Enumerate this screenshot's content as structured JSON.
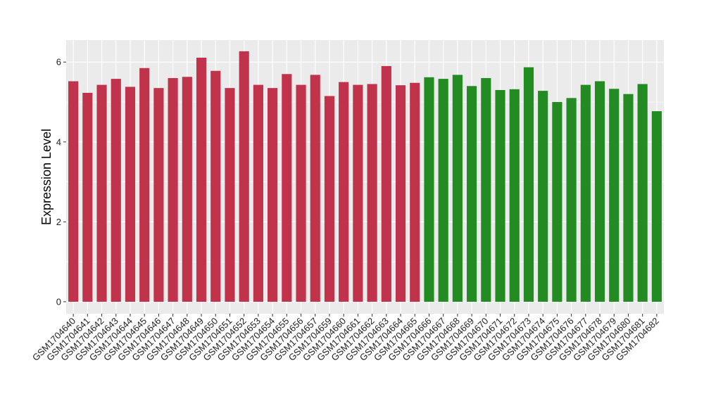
{
  "chart_data": {
    "type": "bar",
    "title": "",
    "xlabel": "",
    "ylabel": "Expression Level",
    "ylim": [
      -0.3,
      6.55
    ],
    "yticks": [
      0,
      2,
      4,
      6
    ],
    "ytick_labels": [
      "0",
      "2",
      "4",
      "6"
    ],
    "grid": true,
    "legend": "none",
    "categories": [
      "GSM1704640",
      "GSM1704641",
      "GSM1704642",
      "GSM1704643",
      "GSM1704644",
      "GSM1704645",
      "GSM1704646",
      "GSM1704647",
      "GSM1704648",
      "GSM1704649",
      "GSM1704650",
      "GSM1704651",
      "GSM1704652",
      "GSM1704653",
      "GSM1704654",
      "GSM1704655",
      "GSM1704656",
      "GSM1704657",
      "GSM1704659",
      "GSM1704660",
      "GSM1704661",
      "GSM1704662",
      "GSM1704663",
      "GSM1704664",
      "GSM1704665",
      "GSM1704666",
      "GSM1704667",
      "GSM1704668",
      "GSM1704669",
      "GSM1704670",
      "GSM1704671",
      "GSM1704672",
      "GSM1704673",
      "GSM1704674",
      "GSM1704675",
      "GSM1704676",
      "GSM1704677",
      "GSM1704678",
      "GSM1704679",
      "GSM1704680",
      "GSM1704681",
      "GSM1704682"
    ],
    "values": [
      5.52,
      5.23,
      5.43,
      5.58,
      5.38,
      5.85,
      5.35,
      5.6,
      5.63,
      6.11,
      5.78,
      5.35,
      6.27,
      5.43,
      5.35,
      5.7,
      5.43,
      5.68,
      5.15,
      5.5,
      5.43,
      5.45,
      5.9,
      5.42,
      5.48,
      5.62,
      5.58,
      5.68,
      5.4,
      5.6,
      5.3,
      5.32,
      5.87,
      5.28,
      5.0,
      5.1,
      5.43,
      5.52,
      5.33,
      5.2,
      5.45,
      4.77
    ],
    "colors": [
      "#c0334b",
      "#c0334b",
      "#c0334b",
      "#c0334b",
      "#c0334b",
      "#c0334b",
      "#c0334b",
      "#c0334b",
      "#c0334b",
      "#c0334b",
      "#c0334b",
      "#c0334b",
      "#c0334b",
      "#c0334b",
      "#c0334b",
      "#c0334b",
      "#c0334b",
      "#c0334b",
      "#c0334b",
      "#c0334b",
      "#c0334b",
      "#c0334b",
      "#c0334b",
      "#c0334b",
      "#c0334b",
      "#228b22",
      "#228b22",
      "#228b22",
      "#228b22",
      "#228b22",
      "#228b22",
      "#228b22",
      "#228b22",
      "#228b22",
      "#228b22",
      "#228b22",
      "#228b22",
      "#228b22",
      "#228b22",
      "#228b22",
      "#228b22",
      "#228b22"
    ],
    "panel_background": "#ebebeb",
    "gridline_color": "#ffffff"
  }
}
